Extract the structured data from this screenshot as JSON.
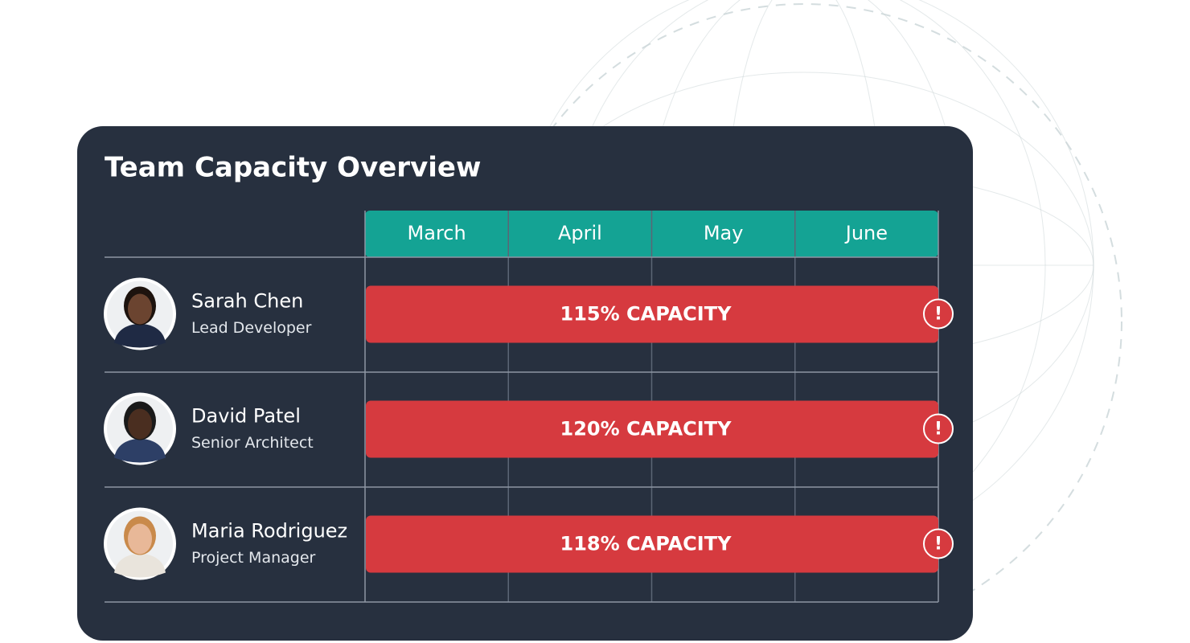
{
  "title": "Team Capacity Overview",
  "months": [
    "March",
    "April",
    "May",
    "June"
  ],
  "members": [
    {
      "name": "Sarah Chen",
      "role": "Lead Developer",
      "capacity": "115% CAPACITY"
    },
    {
      "name": "David Patel",
      "role": "Senior Architect",
      "capacity": "120% CAPACITY"
    },
    {
      "name": "Maria Rodriguez",
      "role": "Project Manager",
      "capacity": "118% CAPACITY"
    }
  ],
  "alert_icon": "!"
}
